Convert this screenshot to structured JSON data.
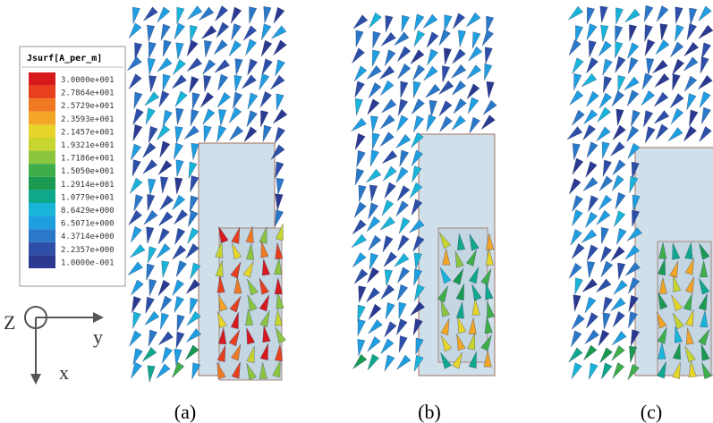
{
  "legend": {
    "title": "Jsurf[A_per_m]",
    "labels": [
      "3.0000e+001",
      "2.7864e+001",
      "2.5729e+001",
      "2.3593e+001",
      "2.1457e+001",
      "1.9321e+001",
      "1.7186e+001",
      "1.5050e+001",
      "1.2914e+001",
      "1.0779e+001",
      "8.6429e+000",
      "6.5071e+000",
      "4.3714e+000",
      "2.2357e+000",
      "1.0000e-001"
    ]
  },
  "axes": {
    "z": "Z",
    "y": "y",
    "x": "x"
  },
  "panels": [
    {
      "caption": "(a)"
    },
    {
      "caption": "(b)"
    },
    {
      "caption": "(c)"
    }
  ]
}
